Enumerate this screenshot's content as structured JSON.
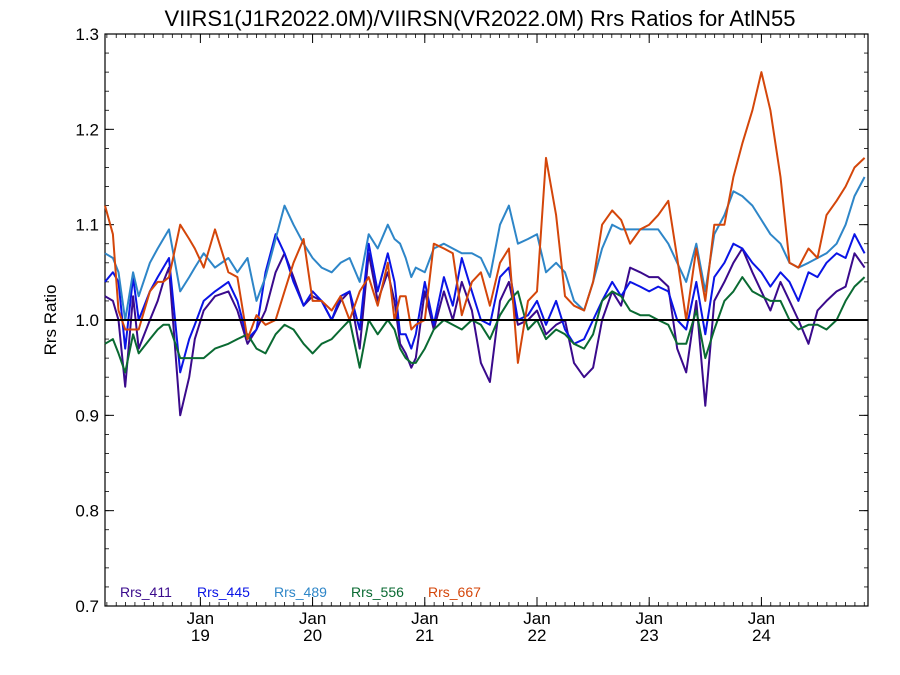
{
  "chart_data": {
    "type": "line",
    "title": "VIIRS1(J1R2022.0M)/VIIRSN(VR2022.0M)  Rrs Ratios for AtlN55",
    "ylabel": "Rrs Ratio",
    "xlabel": "",
    "ylim": [
      0.7,
      1.3
    ],
    "y_ticks": [
      0.7,
      0.8,
      0.9,
      1.0,
      1.1,
      1.2,
      1.3
    ],
    "y_tick_labels": [
      "0.7",
      "0.8",
      "0.9",
      "1.0",
      "1.1",
      "1.2",
      "1.3"
    ],
    "xlim": [
      2018.15,
      2024.95
    ],
    "x_ticks": [
      {
        "value": 2019.0,
        "month": "Jan",
        "year": "19"
      },
      {
        "value": 2020.0,
        "month": "Jan",
        "year": "20"
      },
      {
        "value": 2021.0,
        "month": "Jan",
        "year": "21"
      },
      {
        "value": 2022.0,
        "month": "Jan",
        "year": "22"
      },
      {
        "value": 2023.0,
        "month": "Jan",
        "year": "23"
      },
      {
        "value": 2024.0,
        "month": "Jan",
        "year": "24"
      }
    ],
    "x_minor_step": 0.0833333,
    "reference_line": 1.0,
    "grid": false,
    "legend_placement": "bottom-left",
    "series": [
      {
        "name": "Rrs_411",
        "color": "#3a0a8c",
        "x": [
          2018.15,
          2018.22,
          2018.27,
          2018.33,
          2018.4,
          2018.45,
          2018.55,
          2018.62,
          2018.67,
          2018.72,
          2018.82,
          2018.9,
          2018.95,
          2019.03,
          2019.13,
          2019.25,
          2019.33,
          2019.42,
          2019.5,
          2019.58,
          2019.67,
          2019.75,
          2019.83,
          2019.92,
          2020.0,
          2020.08,
          2020.17,
          2020.25,
          2020.33,
          2020.42,
          2020.5,
          2020.58,
          2020.67,
          2020.73,
          2020.78,
          2020.83,
          2020.88,
          2020.92,
          2021.0,
          2021.08,
          2021.17,
          2021.25,
          2021.33,
          2021.42,
          2021.5,
          2021.58,
          2021.67,
          2021.75,
          2021.83,
          2021.92,
          2022.0,
          2022.08,
          2022.17,
          2022.25,
          2022.33,
          2022.42,
          2022.5,
          2022.58,
          2022.67,
          2022.75,
          2022.83,
          2022.92,
          2023.0,
          2023.08,
          2023.17,
          2023.25,
          2023.33,
          2023.42,
          2023.5,
          2023.58,
          2023.67,
          2023.75,
          2023.83,
          2023.92,
          2024.0,
          2024.08,
          2024.17,
          2024.25,
          2024.33,
          2024.42,
          2024.5,
          2024.58,
          2024.67,
          2024.75,
          2024.83,
          2024.92
        ],
        "y": [
          1.025,
          1.02,
          1.0,
          0.93,
          1.025,
          0.97,
          1.0,
          1.02,
          1.04,
          1.055,
          0.9,
          0.94,
          0.98,
          1.01,
          1.025,
          1.03,
          1.01,
          0.975,
          0.99,
          1.01,
          1.05,
          1.07,
          1.045,
          1.015,
          1.025,
          1.02,
          1.0,
          1.02,
          1.03,
          0.97,
          1.07,
          1.02,
          1.05,
          1.02,
          0.975,
          0.965,
          0.95,
          0.96,
          1.03,
          0.99,
          1.03,
          1.0,
          1.04,
          1.01,
          0.955,
          0.935,
          1.02,
          1.04,
          0.995,
          1.0,
          1.01,
          0.985,
          0.995,
          1.0,
          0.955,
          0.94,
          0.95,
          1.0,
          1.03,
          1.015,
          1.055,
          1.05,
          1.045,
          1.045,
          1.035,
          0.97,
          0.945,
          1.02,
          0.91,
          1.02,
          1.04,
          1.06,
          1.075,
          1.05,
          1.03,
          1.01,
          1.04,
          1.02,
          1.0,
          0.975,
          1.01,
          1.02,
          1.03,
          1.035,
          1.07,
          1.055
        ]
      },
      {
        "name": "Rrs_445",
        "color": "#0a14e6",
        "x": [
          2018.15,
          2018.22,
          2018.27,
          2018.33,
          2018.4,
          2018.45,
          2018.55,
          2018.62,
          2018.67,
          2018.72,
          2018.82,
          2018.9,
          2018.95,
          2019.03,
          2019.13,
          2019.25,
          2019.33,
          2019.42,
          2019.5,
          2019.58,
          2019.67,
          2019.75,
          2019.83,
          2019.92,
          2020.0,
          2020.08,
          2020.17,
          2020.25,
          2020.33,
          2020.42,
          2020.5,
          2020.58,
          2020.67,
          2020.73,
          2020.78,
          2020.83,
          2020.88,
          2020.92,
          2021.0,
          2021.08,
          2021.17,
          2021.25,
          2021.33,
          2021.42,
          2021.5,
          2021.58,
          2021.67,
          2021.75,
          2021.83,
          2021.92,
          2022.0,
          2022.08,
          2022.17,
          2022.25,
          2022.33,
          2022.42,
          2022.5,
          2022.58,
          2022.67,
          2022.75,
          2022.83,
          2022.92,
          2023.0,
          2023.08,
          2023.17,
          2023.25,
          2023.33,
          2023.42,
          2023.5,
          2023.58,
          2023.67,
          2023.75,
          2023.83,
          2023.92,
          2024.0,
          2024.08,
          2024.17,
          2024.25,
          2024.33,
          2024.42,
          2024.5,
          2024.58,
          2024.67,
          2024.75,
          2024.83,
          2024.92
        ],
        "y": [
          1.04,
          1.05,
          1.04,
          0.97,
          1.045,
          1.0,
          1.03,
          1.045,
          1.055,
          1.065,
          0.945,
          0.98,
          0.995,
          1.02,
          1.03,
          1.04,
          1.02,
          0.98,
          0.99,
          1.05,
          1.09,
          1.07,
          1.04,
          1.015,
          1.03,
          1.02,
          1.0,
          1.025,
          1.03,
          0.99,
          1.08,
          1.03,
          1.07,
          1.04,
          0.985,
          0.985,
          0.97,
          0.985,
          1.04,
          0.995,
          1.045,
          1.015,
          1.065,
          1.03,
          1.0,
          0.995,
          1.045,
          1.055,
          1.0,
          1.005,
          1.02,
          0.995,
          1.02,
          0.99,
          0.975,
          0.98,
          1.0,
          1.02,
          1.04,
          1.025,
          1.04,
          1.035,
          1.03,
          1.035,
          1.03,
          1.0,
          0.99,
          1.04,
          0.985,
          1.045,
          1.06,
          1.08,
          1.075,
          1.06,
          1.05,
          1.035,
          1.05,
          1.04,
          1.02,
          1.05,
          1.045,
          1.06,
          1.07,
          1.065,
          1.09,
          1.07
        ]
      },
      {
        "name": "Rrs_489",
        "color": "#2e86c8",
        "x": [
          2018.15,
          2018.22,
          2018.27,
          2018.33,
          2018.4,
          2018.45,
          2018.55,
          2018.62,
          2018.67,
          2018.72,
          2018.82,
          2018.9,
          2018.95,
          2019.03,
          2019.13,
          2019.25,
          2019.33,
          2019.42,
          2019.5,
          2019.58,
          2019.67,
          2019.75,
          2019.83,
          2019.92,
          2020.0,
          2020.08,
          2020.17,
          2020.25,
          2020.33,
          2020.42,
          2020.5,
          2020.58,
          2020.67,
          2020.73,
          2020.78,
          2020.83,
          2020.88,
          2020.92,
          2021.0,
          2021.08,
          2021.17,
          2021.25,
          2021.33,
          2021.42,
          2021.5,
          2021.58,
          2021.67,
          2021.75,
          2021.83,
          2021.92,
          2022.0,
          2022.08,
          2022.17,
          2022.25,
          2022.33,
          2022.42,
          2022.5,
          2022.58,
          2022.67,
          2022.75,
          2022.83,
          2022.92,
          2023.0,
          2023.08,
          2023.17,
          2023.25,
          2023.33,
          2023.42,
          2023.5,
          2023.58,
          2023.67,
          2023.75,
          2023.83,
          2023.92,
          2024.0,
          2024.08,
          2024.17,
          2024.25,
          2024.33,
          2024.42,
          2024.5,
          2024.58,
          2024.67,
          2024.75,
          2024.83,
          2024.92
        ],
        "y": [
          1.07,
          1.065,
          1.05,
          1.0,
          1.05,
          1.025,
          1.06,
          1.075,
          1.085,
          1.095,
          1.03,
          1.045,
          1.055,
          1.07,
          1.055,
          1.065,
          1.05,
          1.065,
          1.02,
          1.045,
          1.085,
          1.12,
          1.1,
          1.08,
          1.065,
          1.055,
          1.05,
          1.06,
          1.065,
          1.04,
          1.09,
          1.075,
          1.1,
          1.085,
          1.08,
          1.065,
          1.045,
          1.055,
          1.05,
          1.075,
          1.08,
          1.075,
          1.07,
          1.07,
          1.065,
          1.045,
          1.1,
          1.12,
          1.08,
          1.085,
          1.09,
          1.05,
          1.06,
          1.05,
          1.02,
          1.01,
          1.04,
          1.075,
          1.1,
          1.095,
          1.095,
          1.095,
          1.095,
          1.095,
          1.08,
          1.06,
          1.04,
          1.08,
          1.03,
          1.09,
          1.11,
          1.135,
          1.13,
          1.12,
          1.105,
          1.09,
          1.08,
          1.06,
          1.055,
          1.06,
          1.065,
          1.07,
          1.08,
          1.1,
          1.13,
          1.15
        ]
      },
      {
        "name": "Rrs_556",
        "color": "#0a6a32",
        "x": [
          2018.15,
          2018.22,
          2018.27,
          2018.33,
          2018.4,
          2018.45,
          2018.55,
          2018.62,
          2018.67,
          2018.72,
          2018.82,
          2018.9,
          2018.95,
          2019.03,
          2019.13,
          2019.25,
          2019.33,
          2019.42,
          2019.5,
          2019.58,
          2019.67,
          2019.75,
          2019.83,
          2019.92,
          2020.0,
          2020.08,
          2020.17,
          2020.25,
          2020.33,
          2020.42,
          2020.5,
          2020.58,
          2020.67,
          2020.73,
          2020.78,
          2020.83,
          2020.88,
          2020.92,
          2021.0,
          2021.08,
          2021.17,
          2021.25,
          2021.33,
          2021.42,
          2021.5,
          2021.58,
          2021.67,
          2021.75,
          2021.83,
          2021.92,
          2022.0,
          2022.08,
          2022.17,
          2022.25,
          2022.33,
          2022.42,
          2022.5,
          2022.58,
          2022.67,
          2022.75,
          2022.83,
          2022.92,
          2023.0,
          2023.08,
          2023.17,
          2023.25,
          2023.33,
          2023.42,
          2023.5,
          2023.58,
          2023.67,
          2023.75,
          2023.83,
          2023.92,
          2024.0,
          2024.08,
          2024.17,
          2024.25,
          2024.33,
          2024.42,
          2024.5,
          2024.58,
          2024.67,
          2024.75,
          2024.83,
          2024.92
        ],
        "y": [
          0.975,
          0.98,
          0.965,
          0.945,
          0.985,
          0.965,
          0.98,
          0.99,
          0.995,
          0.995,
          0.96,
          0.96,
          0.96,
          0.96,
          0.97,
          0.975,
          0.98,
          0.985,
          0.97,
          0.965,
          0.985,
          0.995,
          0.99,
          0.975,
          0.965,
          0.975,
          0.98,
          0.99,
          1.0,
          0.95,
          1.0,
          0.985,
          1.0,
          0.99,
          0.97,
          0.96,
          0.955,
          0.955,
          0.97,
          0.99,
          1.0,
          0.995,
          0.99,
          1.0,
          0.995,
          0.98,
          1.005,
          1.02,
          1.03,
          0.99,
          1.0,
          0.98,
          0.99,
          0.985,
          0.975,
          0.97,
          0.985,
          1.02,
          1.03,
          1.025,
          1.01,
          1.005,
          1.005,
          1.0,
          0.995,
          0.975,
          0.975,
          1.01,
          0.96,
          0.99,
          1.02,
          1.03,
          1.045,
          1.03,
          1.025,
          1.02,
          1.02,
          1.0,
          0.99,
          0.995,
          0.995,
          0.99,
          1.0,
          1.02,
          1.035,
          1.045
        ]
      },
      {
        "name": "Rrs_667",
        "color": "#d4460a",
        "x": [
          2018.15,
          2018.22,
          2018.27,
          2018.33,
          2018.4,
          2018.45,
          2018.55,
          2018.62,
          2018.67,
          2018.72,
          2018.82,
          2018.9,
          2018.95,
          2019.03,
          2019.13,
          2019.25,
          2019.33,
          2019.42,
          2019.5,
          2019.58,
          2019.67,
          2019.75,
          2019.83,
          2019.92,
          2020.0,
          2020.08,
          2020.17,
          2020.25,
          2020.33,
          2020.42,
          2020.5,
          2020.58,
          2020.67,
          2020.73,
          2020.78,
          2020.83,
          2020.88,
          2020.92,
          2021.0,
          2021.08,
          2021.17,
          2021.25,
          2021.33,
          2021.42,
          2021.5,
          2021.58,
          2021.67,
          2021.75,
          2021.83,
          2021.92,
          2022.0,
          2022.08,
          2022.17,
          2022.25,
          2022.33,
          2022.42,
          2022.5,
          2022.58,
          2022.67,
          2022.75,
          2022.83,
          2022.92,
          2023.0,
          2023.08,
          2023.17,
          2023.25,
          2023.33,
          2023.42,
          2023.5,
          2023.58,
          2023.67,
          2023.75,
          2023.83,
          2023.92,
          2024.0,
          2024.08,
          2024.17,
          2024.25,
          2024.33,
          2024.42,
          2024.5,
          2024.58,
          2024.67,
          2024.75,
          2024.83,
          2024.92
        ],
        "y": [
          1.12,
          1.09,
          1.01,
          0.99,
          0.99,
          0.99,
          1.03,
          1.04,
          1.04,
          1.045,
          1.1,
          1.085,
          1.075,
          1.055,
          1.095,
          1.05,
          1.045,
          0.98,
          1.005,
          0.995,
          1.0,
          1.03,
          1.06,
          1.085,
          1.02,
          1.02,
          1.01,
          1.025,
          1.0,
          1.03,
          1.045,
          1.015,
          1.06,
          1.0,
          1.025,
          1.025,
          0.99,
          0.995,
          1.0,
          1.08,
          1.075,
          1.07,
          1.005,
          1.04,
          1.05,
          1.015,
          1.06,
          1.075,
          0.955,
          1.02,
          1.03,
          1.17,
          1.11,
          1.025,
          1.015,
          1.01,
          1.04,
          1.1,
          1.115,
          1.105,
          1.08,
          1.095,
          1.1,
          1.11,
          1.125,
          1.065,
          1.0,
          1.075,
          1.02,
          1.1,
          1.1,
          1.15,
          1.185,
          1.22,
          1.26,
          1.22,
          1.15,
          1.06,
          1.055,
          1.075,
          1.065,
          1.11,
          1.125,
          1.14,
          1.16,
          1.17
        ]
      }
    ]
  }
}
